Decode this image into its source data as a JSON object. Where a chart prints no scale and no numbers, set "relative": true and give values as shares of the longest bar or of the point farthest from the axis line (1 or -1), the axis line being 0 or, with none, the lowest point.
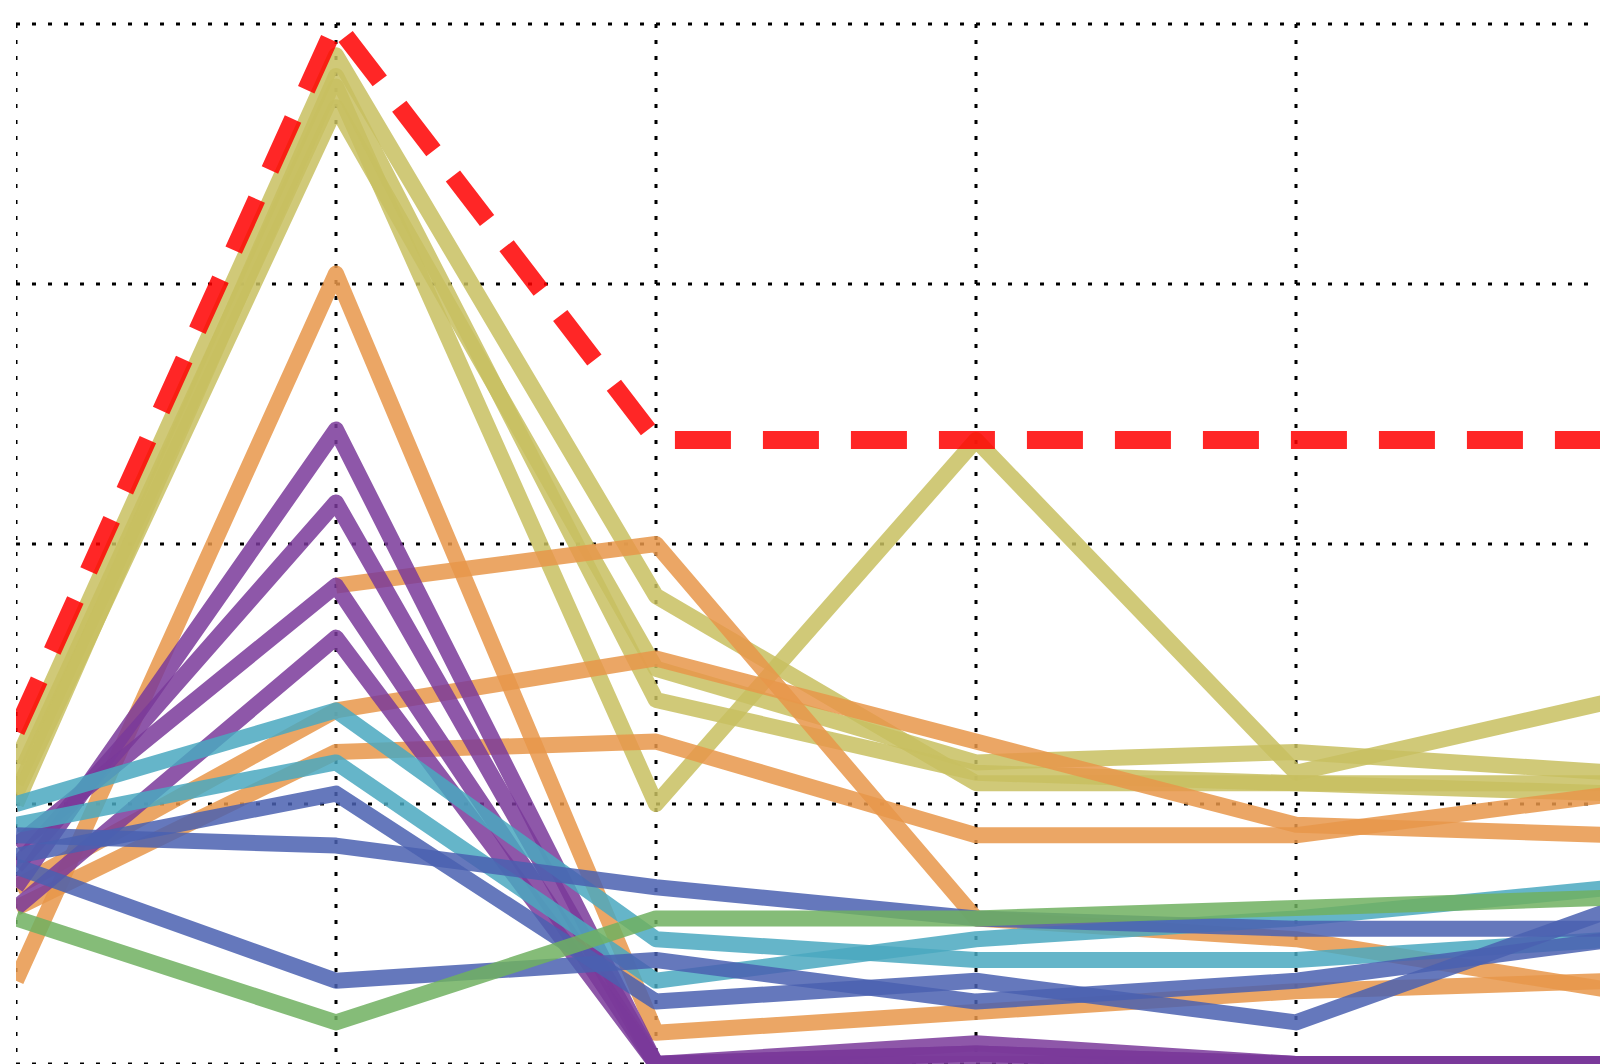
{
  "chart_data": {
    "type": "line",
    "relative": true,
    "categories": [
      null,
      null,
      null,
      null,
      null,
      null
    ],
    "grid": true,
    "marker": "none",
    "line_style": "solid",
    "series": [
      {
        "color": "#c8c060",
        "values": [
          0.29,
          0.97,
          0.45,
          0.27,
          0.27,
          0.26
        ]
      },
      {
        "color": "#c8c060",
        "values": [
          0.27,
          0.94,
          0.25,
          0.6,
          0.28,
          0.35
        ]
      },
      {
        "color": "#c8c060",
        "values": [
          0.26,
          0.92,
          0.38,
          0.29,
          0.3,
          0.28
        ]
      },
      {
        "color": "#c8c060",
        "values": [
          0.25,
          0.95,
          0.35,
          0.28,
          0.27,
          0.27
        ]
      },
      {
        "color": "#e8964a",
        "values": [
          0.08,
          0.76,
          0.03,
          0.05,
          0.07,
          0.08
        ]
      },
      {
        "color": "#e8964a",
        "values": [
          null,
          0.46,
          0.5,
          0.14,
          0.12,
          0.07
        ]
      },
      {
        "color": "#e8964a",
        "values": [
          0.17,
          0.34,
          0.39,
          0.31,
          0.23,
          0.22
        ]
      },
      {
        "color": "#e8964a",
        "values": [
          0.15,
          0.3,
          0.31,
          0.22,
          0.22,
          0.26
        ]
      },
      {
        "color": "#7a3a9a",
        "values": [
          0.17,
          0.61,
          0,
          0.02,
          0,
          0
        ]
      },
      {
        "color": "#7a3a9a",
        "values": [
          0.19,
          0.54,
          0,
          0.01,
          0,
          0
        ]
      },
      {
        "color": "#7a3a9a",
        "values": [
          0.21,
          0.46,
          0,
          0.01,
          0,
          0
        ]
      },
      {
        "color": "#7a3a9a",
        "values": [
          0.15,
          0.41,
          0,
          0,
          0,
          0
        ]
      },
      {
        "color": "#4aa8c0",
        "values": [
          0.25,
          0.34,
          0.12,
          0.1,
          0.1,
          0.12
        ]
      },
      {
        "color": "#4aa8c0",
        "values": [
          0.23,
          0.29,
          0.08,
          0.12,
          0.14,
          0.17
        ]
      },
      {
        "color": "#4a60b0",
        "values": [
          0.22,
          0.21,
          0.17,
          0.14,
          0.13,
          0.13
        ]
      },
      {
        "color": "#4a60b0",
        "values": [
          0.19,
          0.08,
          0.1,
          0.06,
          0.08,
          0.12
        ]
      },
      {
        "color": "#4a60b0",
        "values": [
          0.2,
          0.26,
          0.06,
          0.08,
          0.04,
          0.15
        ]
      },
      {
        "color": "#70b060",
        "values": [
          0.14,
          0.04,
          0.14,
          0.14,
          0.15,
          0.16
        ]
      },
      {
        "color": "#ff0000",
        "line_style": "dashed",
        "values": [
          0.32,
          1,
          0.6,
          0.6,
          0.6,
          0.6
        ]
      }
    ]
  }
}
